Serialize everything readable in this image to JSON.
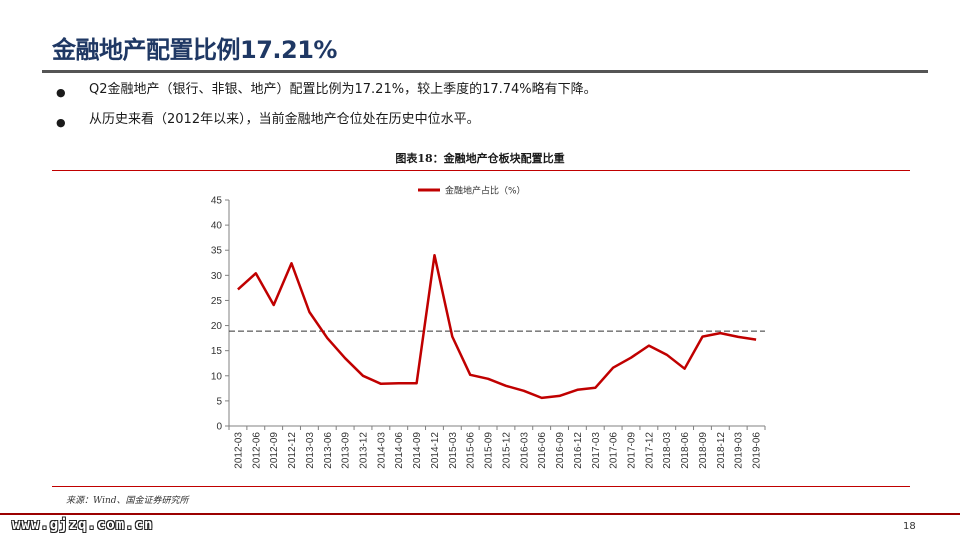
{
  "slide": {
    "title": "金融地产配置比例17.21%",
    "bullets": [
      "Q2金融地产（银行、非银、地产）配置比例为17.21%，较上季度的17.74%略有下降。",
      "从历史来看（2012年以来），当前金融地产仓位处在历史中位水平。"
    ],
    "figure_caption": "图表18：金融地产仓板块配置比重",
    "source_note": "来源：Wind、国金证券研究所",
    "footer_url": "www.gjzq.com.cn",
    "page_number": "18"
  },
  "colors": {
    "title": "#1f3864",
    "series_line": "#c00000",
    "reference_line": "#333333",
    "rules": "#c00000",
    "footer_bar": "#9b0000"
  },
  "chart_data": {
    "type": "line",
    "title": "",
    "xlabel": "",
    "ylabel": "",
    "ylim": [
      0,
      45
    ],
    "y_ticks": [
      0,
      5,
      10,
      15,
      20,
      25,
      30,
      35,
      40,
      45
    ],
    "grid": false,
    "legend_position": "top",
    "x": [
      "2012-03",
      "2012-06",
      "2012-09",
      "2012-12",
      "2013-03",
      "2013-06",
      "2013-09",
      "2013-12",
      "2014-03",
      "2014-06",
      "2014-09",
      "2014-12",
      "2015-03",
      "2015-06",
      "2015-09",
      "2015-12",
      "2016-03",
      "2016-06",
      "2016-09",
      "2016-12",
      "2017-03",
      "2017-06",
      "2017-09",
      "2017-12",
      "2018-03",
      "2018-06",
      "2018-09",
      "2018-12",
      "2019-03",
      "2019-06"
    ],
    "series": [
      {
        "name": "金融地产占比（%）",
        "values": [
          27.2,
          30.4,
          24.1,
          32.4,
          22.7,
          17.5,
          13.5,
          10.0,
          8.4,
          8.5,
          8.5,
          34.0,
          17.8,
          10.2,
          9.4,
          8.0,
          7.0,
          5.6,
          6.0,
          7.2,
          7.6,
          11.6,
          13.6,
          16.0,
          14.2,
          11.4,
          17.8,
          18.5,
          17.74,
          17.21
        ]
      }
    ],
    "reference_line": {
      "style": "dashed",
      "value": 18.9
    }
  }
}
